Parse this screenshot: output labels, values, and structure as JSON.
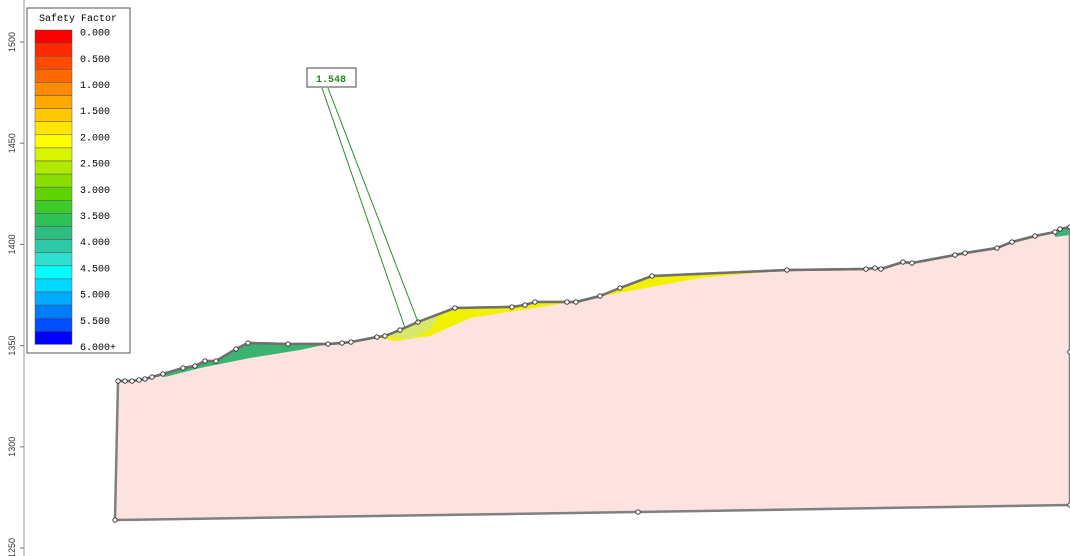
{
  "axis": {
    "ticks": [
      "1500",
      "1450",
      "1400",
      "1350",
      "1300",
      "1250"
    ]
  },
  "legend": {
    "title": "Safety Factor",
    "labels": [
      "0.000",
      "0.500",
      "1.000",
      "1.500",
      "2.000",
      "2.500",
      "3.000",
      "3.500",
      "4.000",
      "4.500",
      "5.000",
      "5.500",
      "6.000+"
    ]
  },
  "annotation": "1.548"
}
